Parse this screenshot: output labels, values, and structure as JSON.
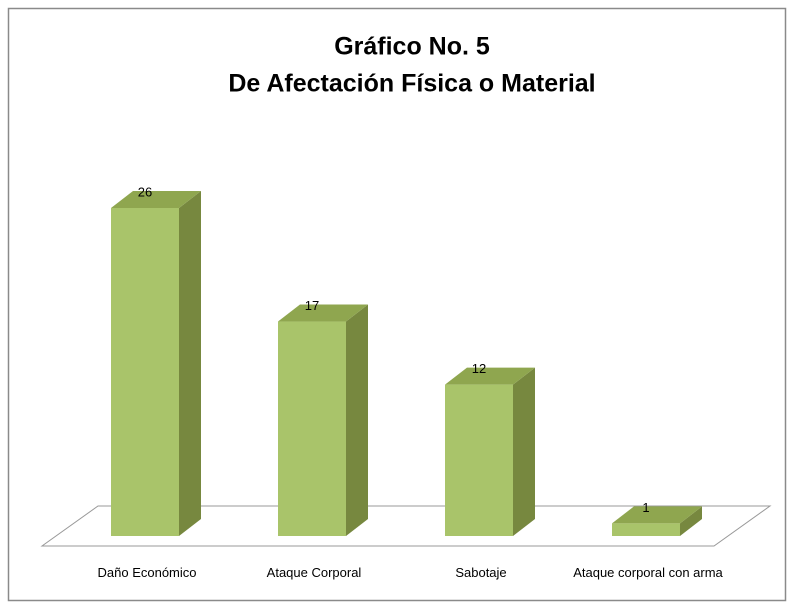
{
  "chart_data": {
    "type": "bar3d",
    "title": [
      "Gráfico No. 5",
      "De Afectación Física o Material"
    ],
    "categories": [
      "Daño Económico",
      "Ataque Corporal",
      "Sabotaje",
      "Ataque corporal con arma"
    ],
    "values": [
      26,
      17,
      12,
      1
    ],
    "color": "#a9c46a",
    "side_color": "#77883f",
    "top_color": "#8fa64f"
  }
}
